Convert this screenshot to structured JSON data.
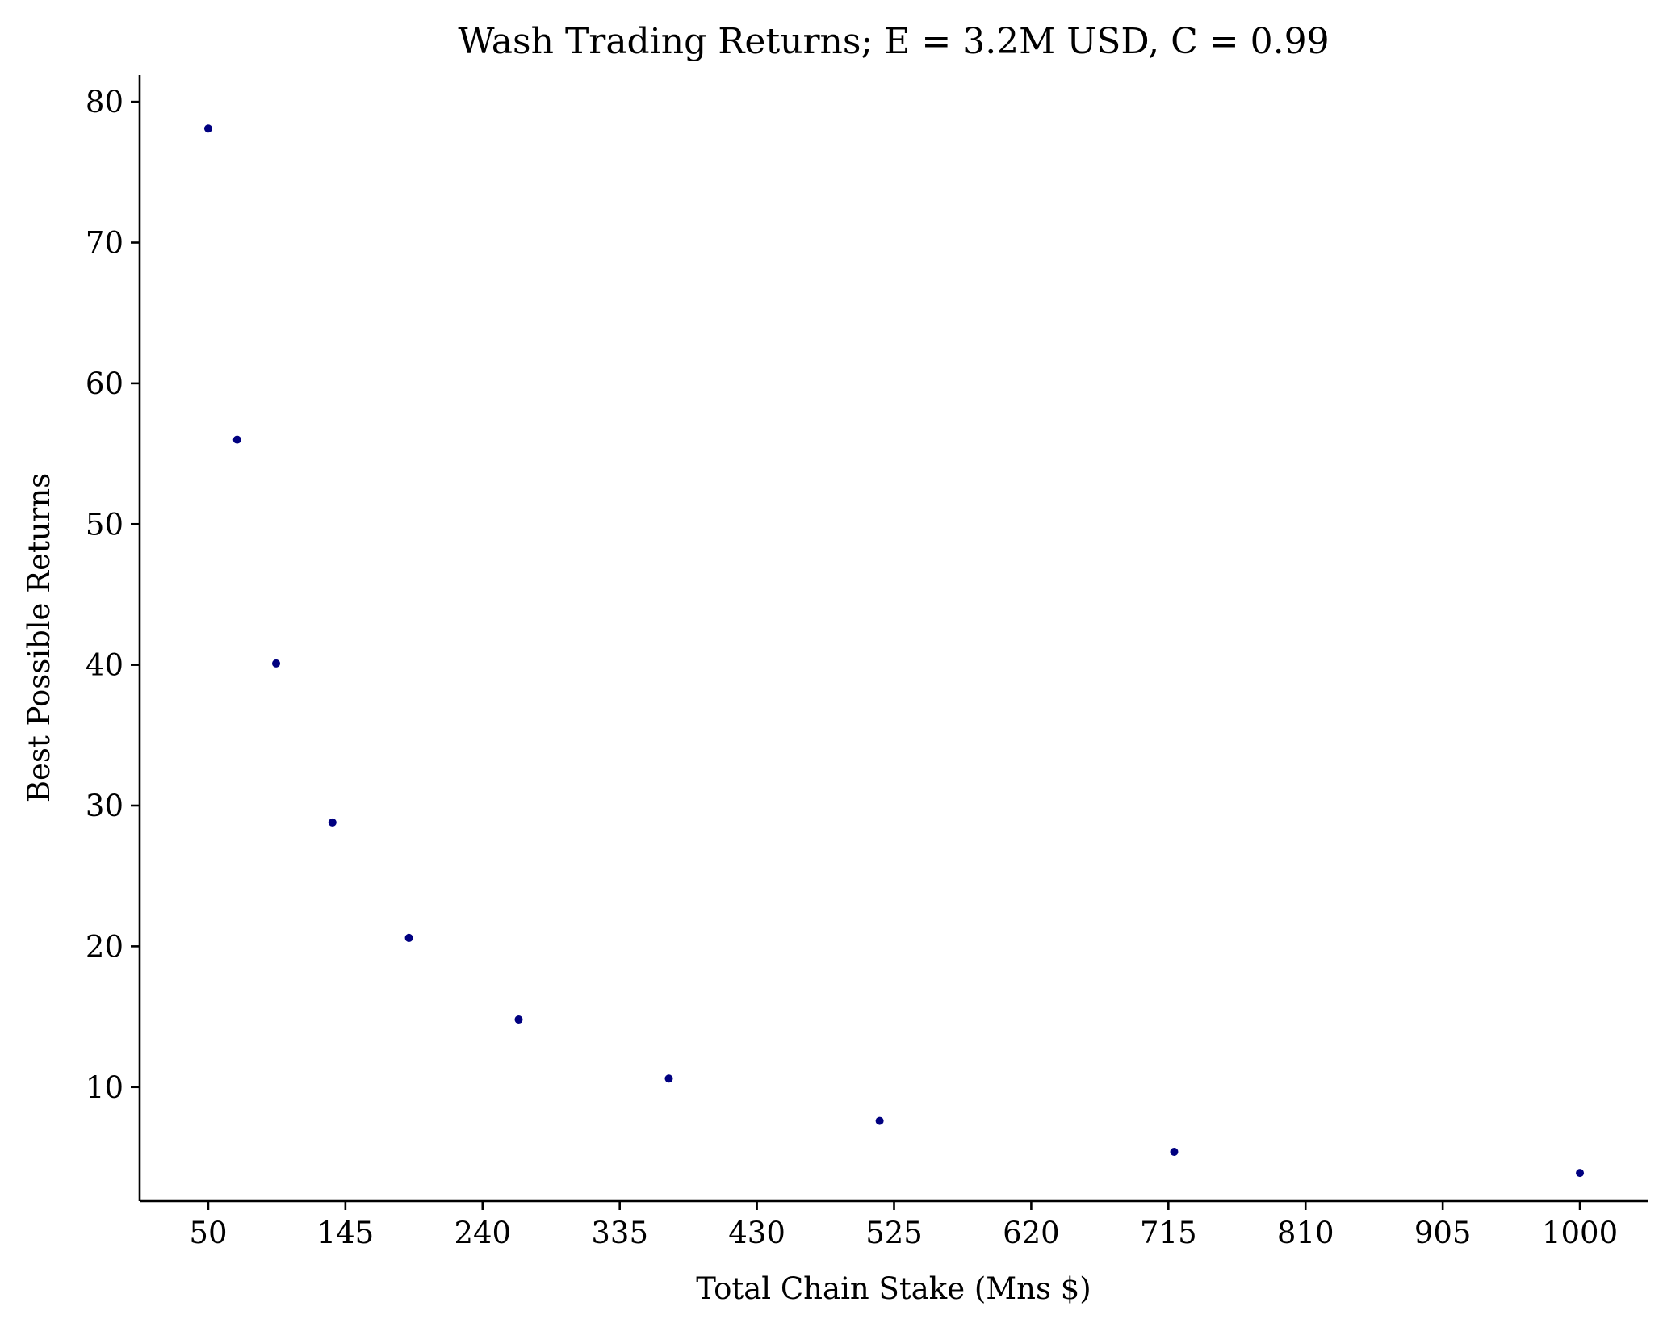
{
  "chart_data": {
    "type": "scatter",
    "title": "Wash Trading Returns; E = 3.2M USD, C = 0.99",
    "xlabel": "Total Chain Stake (Mns $)",
    "ylabel": "Best Possible Returns",
    "xlim": [
      2.5,
      1047.5
    ],
    "ylim": [
      1.9,
      81.9
    ],
    "xticks": [
      50,
      145,
      240,
      335,
      430,
      525,
      620,
      715,
      810,
      905,
      1000
    ],
    "xtick_labels": [
      "50",
      "145",
      "240",
      "335",
      "430",
      "525",
      "620",
      "715",
      "810",
      "905",
      "1000"
    ],
    "yticks": [
      10,
      20,
      30,
      40,
      50,
      60,
      70,
      80
    ],
    "ytick_labels": [
      "10",
      "20",
      "30",
      "40",
      "50",
      "60",
      "70",
      "80"
    ],
    "grid": false,
    "spines": [
      "left",
      "bottom"
    ],
    "marker_color": "#000080",
    "points": [
      {
        "x": 50,
        "y": 78.1
      },
      {
        "x": 70,
        "y": 56.0
      },
      {
        "x": 97,
        "y": 40.1
      },
      {
        "x": 136,
        "y": 28.8
      },
      {
        "x": 189,
        "y": 20.6
      },
      {
        "x": 265,
        "y": 14.8
      },
      {
        "x": 369,
        "y": 10.6
      },
      {
        "x": 515,
        "y": 7.6
      },
      {
        "x": 719,
        "y": 5.4
      },
      {
        "x": 1000,
        "y": 3.9
      }
    ]
  }
}
